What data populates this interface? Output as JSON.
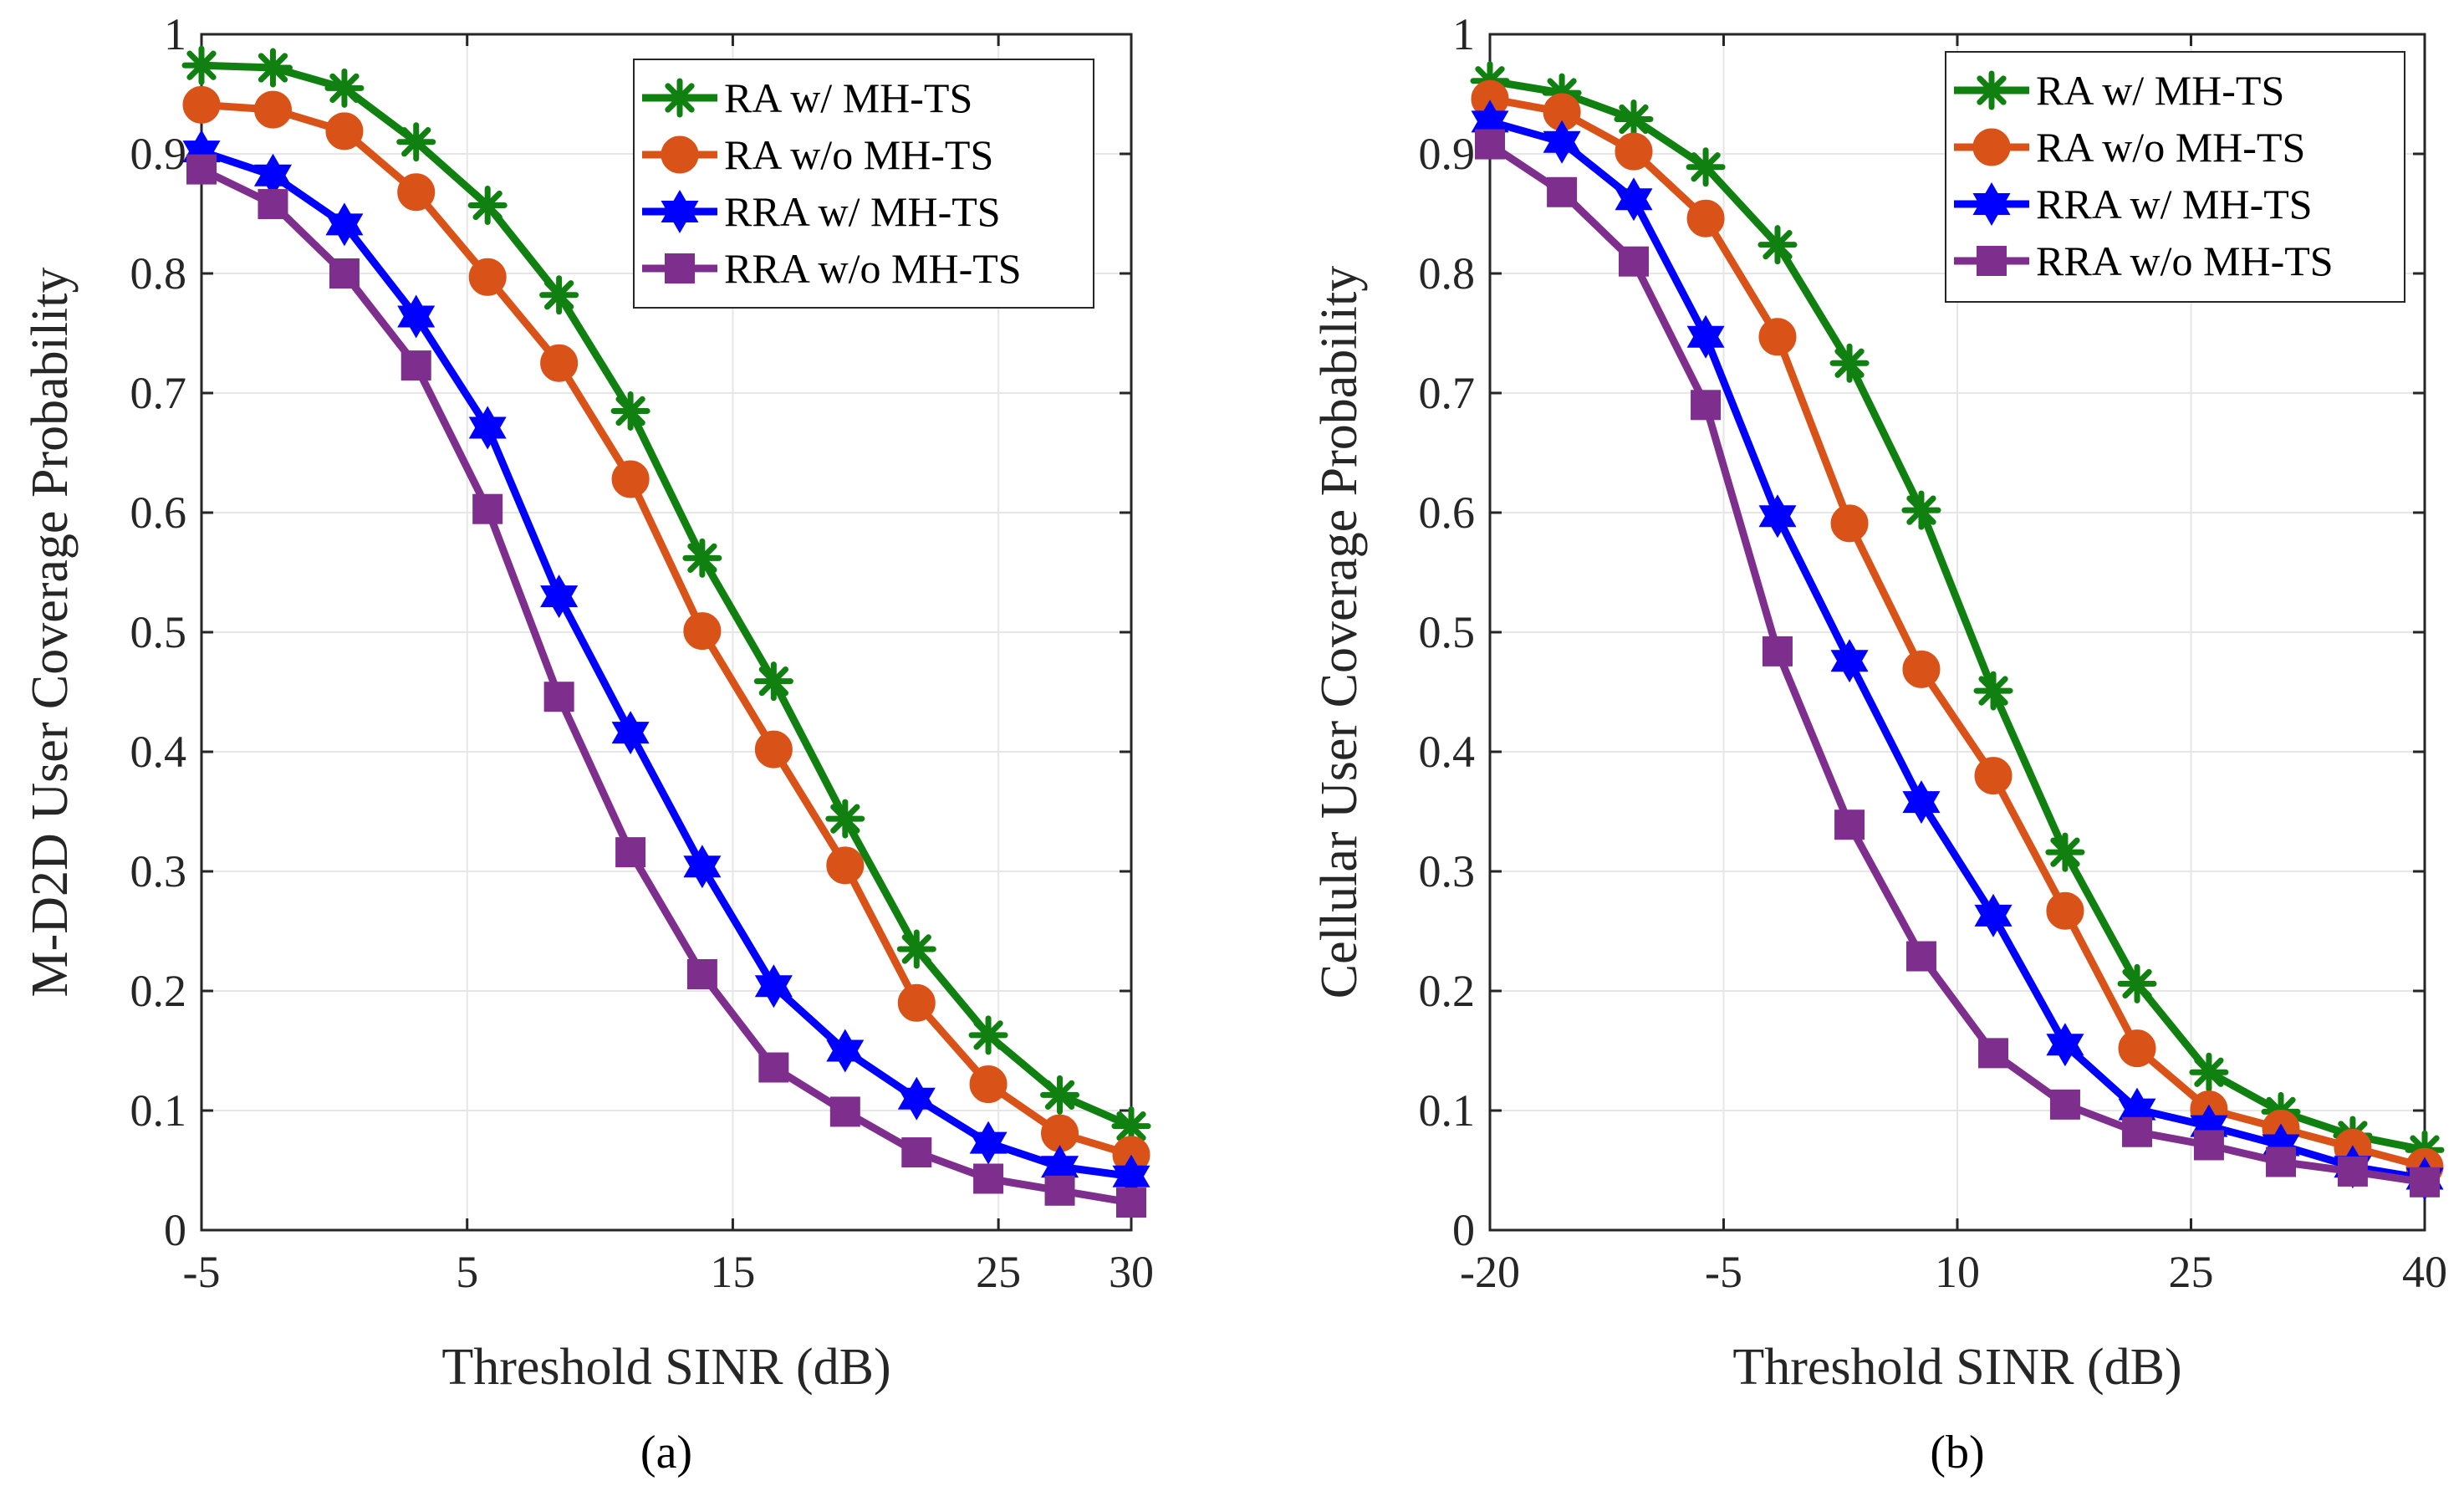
{
  "chart_data": [
    {
      "type": "line",
      "caption": "(a)",
      "xlabel": "Threshold SINR (dB)",
      "ylabel": "M-D2D User Coverage Probability",
      "xlim": [
        -5,
        30
      ],
      "ylim": [
        0,
        1
      ],
      "xticks": [
        -5,
        5,
        15,
        25,
        30
      ],
      "xtick_labels": [
        "-5",
        "5",
        "15",
        "25",
        "30"
      ],
      "yticks": [
        0,
        0.1,
        0.2,
        0.3,
        0.4,
        0.5,
        0.6,
        0.7,
        0.8,
        0.9,
        1
      ],
      "ytick_labels": [
        "0",
        "0.1",
        "0.2",
        "0.3",
        "0.4",
        "0.5",
        "0.6",
        "0.7",
        "0.8",
        "0.9",
        "1"
      ],
      "grid": true,
      "legend_position": "top-right",
      "x": [
        -5,
        -2.31,
        0.38,
        3.08,
        5.77,
        8.46,
        11.15,
        13.85,
        16.54,
        19.23,
        21.92,
        24.62,
        27.31,
        30
      ],
      "series": [
        {
          "name": "RA w/ MH-TS",
          "color": "#108010",
          "marker": "asterisk",
          "values": [
            0.974,
            0.972,
            0.955,
            0.91,
            0.857,
            0.782,
            0.685,
            0.562,
            0.459,
            0.344,
            0.235,
            0.163,
            0.113,
            0.087
          ]
        },
        {
          "name": "RA w/o MH-TS",
          "color": "#D95319",
          "marker": "circle",
          "values": [
            0.941,
            0.937,
            0.919,
            0.868,
            0.797,
            0.725,
            0.628,
            0.501,
            0.402,
            0.305,
            0.19,
            0.122,
            0.081,
            0.063
          ]
        },
        {
          "name": "RRA w/ MH-TS",
          "color": "#0000FF",
          "marker": "hexagram",
          "values": [
            0.902,
            0.882,
            0.841,
            0.764,
            0.671,
            0.53,
            0.416,
            0.304,
            0.204,
            0.15,
            0.11,
            0.073,
            0.053,
            0.045
          ]
        },
        {
          "name": "RRA w/o MH-TS",
          "color": "#7E2F8E",
          "marker": "square",
          "values": [
            0.887,
            0.858,
            0.8,
            0.723,
            0.603,
            0.446,
            0.316,
            0.214,
            0.136,
            0.099,
            0.065,
            0.043,
            0.033,
            0.023
          ]
        }
      ]
    },
    {
      "type": "line",
      "caption": "(b)",
      "xlabel": "Threshold SINR (dB)",
      "ylabel": "Cellular User Coverage Probability",
      "xlim": [
        -20,
        40
      ],
      "ylim": [
        0,
        1
      ],
      "xticks": [
        -20,
        -5,
        10,
        25,
        40
      ],
      "xtick_labels": [
        "-20",
        "-5",
        "10",
        "25",
        "40"
      ],
      "yticks": [
        0,
        0.1,
        0.2,
        0.3,
        0.4,
        0.5,
        0.6,
        0.7,
        0.8,
        0.9,
        1
      ],
      "ytick_labels": [
        "0",
        "0.1",
        "0.2",
        "0.3",
        "0.4",
        "0.5",
        "0.6",
        "0.7",
        "0.8",
        "0.9",
        "1"
      ],
      "grid": true,
      "legend_position": "top-right",
      "x": [
        -20,
        -15.38,
        -10.77,
        -6.15,
        -1.54,
        3.08,
        7.69,
        12.31,
        16.92,
        21.54,
        26.15,
        30.77,
        35.38,
        40
      ],
      "series": [
        {
          "name": "RA w/ MH-TS",
          "color": "#108010",
          "marker": "asterisk",
          "values": [
            0.961,
            0.951,
            0.929,
            0.889,
            0.824,
            0.725,
            0.602,
            0.451,
            0.316,
            0.206,
            0.132,
            0.099,
            0.079,
            0.067
          ]
        },
        {
          "name": "RA w/o MH-TS",
          "color": "#D95319",
          "marker": "circle",
          "values": [
            0.946,
            0.935,
            0.902,
            0.846,
            0.747,
            0.591,
            0.469,
            0.38,
            0.267,
            0.152,
            0.101,
            0.085,
            0.069,
            0.053
          ]
        },
        {
          "name": "RRA w/ MH-TS",
          "color": "#0000FF",
          "marker": "hexagram",
          "values": [
            0.927,
            0.91,
            0.862,
            0.747,
            0.597,
            0.476,
            0.358,
            0.263,
            0.155,
            0.101,
            0.087,
            0.071,
            0.053,
            0.043
          ]
        },
        {
          "name": "RRA w/o MH-TS",
          "color": "#7E2F8E",
          "marker": "square",
          "values": [
            0.908,
            0.868,
            0.81,
            0.69,
            0.484,
            0.339,
            0.229,
            0.148,
            0.105,
            0.082,
            0.071,
            0.057,
            0.049,
            0.04
          ]
        }
      ]
    }
  ]
}
